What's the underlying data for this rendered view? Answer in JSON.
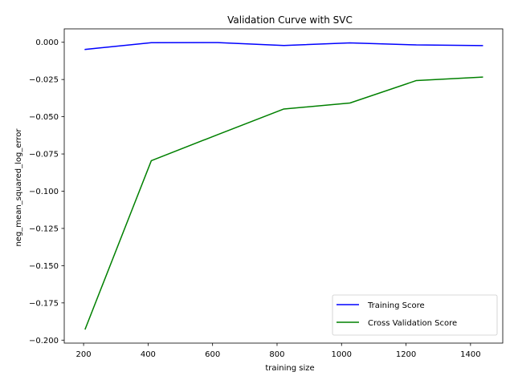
{
  "chart_data": {
    "type": "line",
    "title": "Validation Curve with SVC",
    "xlabel": "training size",
    "ylabel": "neg_mean_squared_log_error",
    "xlim": [
      140,
      1500
    ],
    "ylim": [
      -0.202,
      0.009
    ],
    "xticks": [
      200,
      400,
      600,
      800,
      1000,
      1200,
      1400
    ],
    "xtick_labels": [
      "200",
      "400",
      "600",
      "800",
      "1000",
      "1200",
      "1400"
    ],
    "yticks": [
      0.0,
      -0.025,
      -0.05,
      -0.075,
      -0.1,
      -0.125,
      -0.15,
      -0.175,
      -0.2
    ],
    "ytick_labels": [
      "0.000",
      "−0.025",
      "−0.050",
      "−0.075",
      "−0.100",
      "−0.125",
      "−0.150",
      "−0.175",
      "−0.200"
    ],
    "grid": false,
    "legend_position": "lower-right",
    "x": [
      205,
      410,
      616,
      821,
      1026,
      1232,
      1437
    ],
    "series": [
      {
        "name": "Training Score",
        "color": "#0000ff",
        "values": [
          -0.0048,
          -0.0003,
          -0.0002,
          -0.0022,
          -0.0004,
          -0.0018,
          -0.0022
        ]
      },
      {
        "name": "Cross Validation Score",
        "color": "#008000",
        "values": [
          -0.1925,
          -0.0795,
          -0.062,
          -0.0448,
          -0.0408,
          -0.0257,
          -0.0234
        ]
      }
    ]
  }
}
